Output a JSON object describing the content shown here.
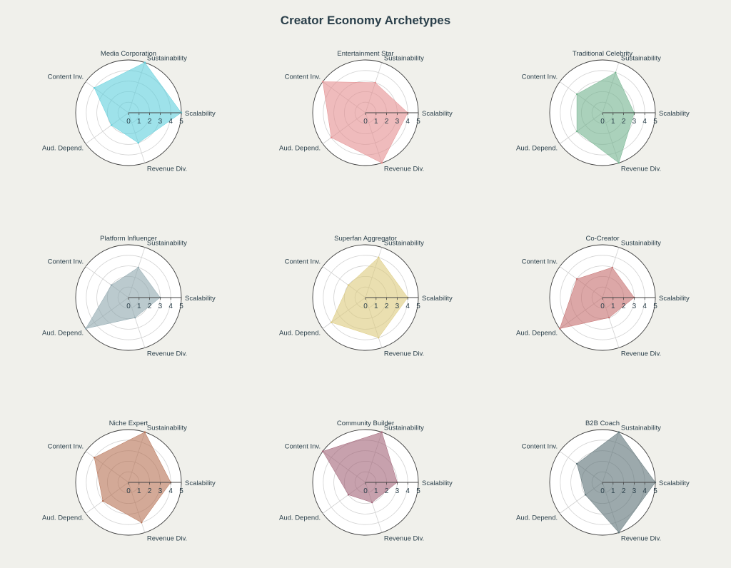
{
  "chart_data": {
    "type": "radar",
    "title": "Creator Economy Archetypes",
    "axes": [
      "Scalability",
      "Sustainability",
      "Content Inv.",
      "Aud. Depend.",
      "Revenue Div."
    ],
    "range": [
      0,
      5
    ],
    "ticks": [
      "0",
      "1",
      "2",
      "3",
      "4",
      "5"
    ],
    "subplots": [
      {
        "name": "Media Corporation",
        "color": "#5ecfdc",
        "values": [
          5,
          5,
          4,
          2,
          3
        ]
      },
      {
        "name": "Entertainment Star",
        "color": "#e58e8f",
        "values": [
          4,
          3,
          5,
          4,
          5
        ]
      },
      {
        "name": "Traditional Celebrity",
        "color": "#72b38d",
        "values": [
          3,
          4,
          3,
          3,
          5
        ]
      },
      {
        "name": "Platform Influencer",
        "color": "#8ea6ae",
        "values": [
          3,
          3,
          2,
          5,
          2
        ]
      },
      {
        "name": "Superfan Aggregator",
        "color": "#dcca7c",
        "values": [
          4,
          4,
          2,
          4,
          4
        ]
      },
      {
        "name": "Co-Creator",
        "color": "#c46d6c",
        "values": [
          3,
          3,
          3,
          5,
          2
        ]
      },
      {
        "name": "Niche Expert",
        "color": "#b56f52",
        "values": [
          4,
          5,
          4,
          3,
          4
        ]
      },
      {
        "name": "Community Builder",
        "color": "#a26377",
        "values": [
          3,
          5,
          5,
          2,
          2
        ]
      },
      {
        "name": "B2B Coach",
        "color": "#5a7074",
        "values": [
          5,
          5,
          3,
          2,
          5
        ]
      }
    ]
  }
}
